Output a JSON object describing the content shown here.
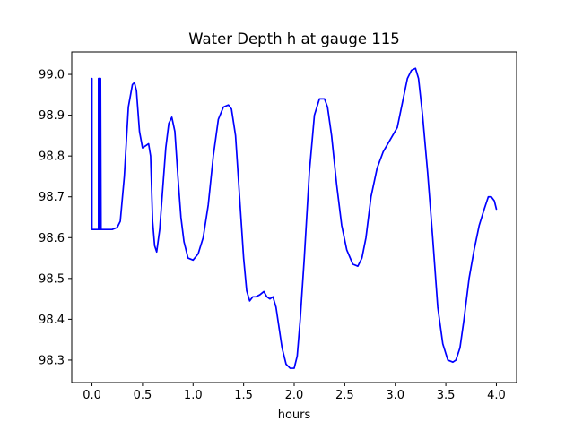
{
  "chart_data": {
    "type": "line",
    "title": "Water Depth h at gauge 115",
    "xlabel": "hours",
    "ylabel": "",
    "xlim": [
      -0.2,
      4.2
    ],
    "ylim": [
      98.245,
      99.055
    ],
    "x_ticks": [
      0.0,
      0.5,
      1.0,
      1.5,
      2.0,
      2.5,
      3.0,
      3.5,
      4.0
    ],
    "x_tick_labels": [
      "0.0",
      "0.5",
      "1.0",
      "1.5",
      "2.0",
      "2.5",
      "3.0",
      "3.5",
      "4.0"
    ],
    "y_ticks": [
      98.3,
      98.4,
      98.5,
      98.6,
      98.7,
      98.8,
      98.9,
      99.0
    ],
    "y_tick_labels": [
      "98.3",
      "98.4",
      "98.5",
      "98.6",
      "98.7",
      "98.8",
      "98.9",
      "99.0"
    ],
    "grid": false,
    "legend": "none",
    "series": [
      {
        "color": "#0000ff",
        "x": [
          0.0,
          0.0,
          0.0,
          0.065,
          0.065,
          0.065,
          0.07,
          0.07,
          0.075,
          0.075,
          0.08,
          0.08,
          0.085,
          0.085,
          0.09,
          0.09,
          0.2,
          0.25,
          0.28,
          0.32,
          0.36,
          0.4,
          0.42,
          0.44,
          0.47,
          0.5,
          0.53,
          0.56,
          0.58,
          0.6,
          0.62,
          0.64,
          0.67,
          0.7,
          0.73,
          0.76,
          0.79,
          0.82,
          0.85,
          0.88,
          0.91,
          0.95,
          1.0,
          1.05,
          1.1,
          1.15,
          1.2,
          1.25,
          1.3,
          1.35,
          1.38,
          1.42,
          1.46,
          1.5,
          1.53,
          1.56,
          1.59,
          1.62,
          1.66,
          1.7,
          1.73,
          1.76,
          1.79,
          1.82,
          1.85,
          1.88,
          1.92,
          1.96,
          2.0,
          2.03,
          2.06,
          2.1,
          2.15,
          2.2,
          2.25,
          2.3,
          2.33,
          2.37,
          2.42,
          2.47,
          2.52,
          2.58,
          2.63,
          2.67,
          2.71,
          2.76,
          2.82,
          2.88,
          2.95,
          3.02,
          3.07,
          3.12,
          3.16,
          3.2,
          3.23,
          3.27,
          3.32,
          3.37,
          3.42,
          3.47,
          3.52,
          3.57,
          3.6,
          3.64,
          3.68,
          3.73,
          3.78,
          3.83,
          3.88,
          3.92,
          3.95,
          3.98,
          4.0
        ],
        "y": [
          98.62,
          98.99,
          98.62,
          98.62,
          98.99,
          98.62,
          98.62,
          98.99,
          98.62,
          98.99,
          98.62,
          98.99,
          98.62,
          98.99,
          98.62,
          98.62,
          98.62,
          98.625,
          98.64,
          98.75,
          98.92,
          98.975,
          98.98,
          98.96,
          98.86,
          98.82,
          98.825,
          98.83,
          98.8,
          98.64,
          98.58,
          98.565,
          98.62,
          98.72,
          98.82,
          98.88,
          98.895,
          98.86,
          98.75,
          98.65,
          98.59,
          98.55,
          98.545,
          98.56,
          98.6,
          98.68,
          98.8,
          98.89,
          98.92,
          98.925,
          98.915,
          98.85,
          98.7,
          98.55,
          98.47,
          98.445,
          98.455,
          98.455,
          98.46,
          98.468,
          98.455,
          98.45,
          98.455,
          98.43,
          98.38,
          98.33,
          98.29,
          98.28,
          98.28,
          98.31,
          98.4,
          98.55,
          98.76,
          98.9,
          98.94,
          98.94,
          98.92,
          98.85,
          98.73,
          98.63,
          98.57,
          98.535,
          98.53,
          98.55,
          98.6,
          98.7,
          98.77,
          98.81,
          98.84,
          98.87,
          98.93,
          98.99,
          99.01,
          99.015,
          98.99,
          98.9,
          98.76,
          98.6,
          98.43,
          98.34,
          98.3,
          98.295,
          98.3,
          98.33,
          98.4,
          98.5,
          98.57,
          98.63,
          98.67,
          98.7,
          98.7,
          98.69,
          98.67
        ]
      }
    ]
  }
}
